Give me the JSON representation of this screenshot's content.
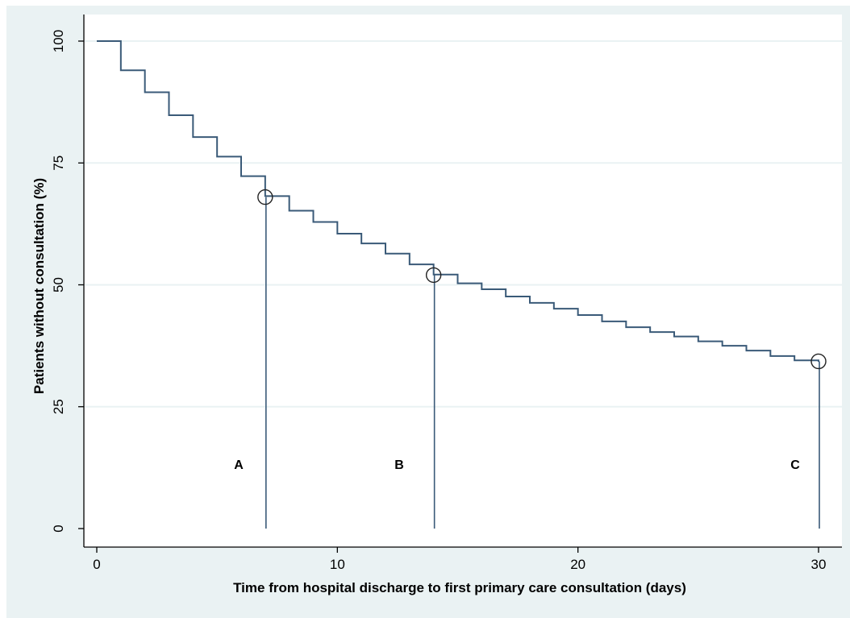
{
  "chart_data": {
    "type": "line",
    "subtype": "kaplan-meier-step",
    "title": "",
    "xlabel": "Time from hospital discharge to first primary care consultation (days)",
    "ylabel": "Patients without consultation (%)",
    "xlim": [
      0,
      30
    ],
    "ylim": [
      0,
      100
    ],
    "xticks": [
      0,
      10,
      20,
      30
    ],
    "yticks": [
      0,
      25,
      50,
      75,
      100
    ],
    "grid": "horizontal",
    "colors": {
      "line": "#3a5a78",
      "background": "#eaf2f3",
      "plot": "#ffffff",
      "grid": "#eaf2f3"
    },
    "series": [
      {
        "x": [
          0,
          1,
          2,
          3,
          4,
          5,
          6,
          7,
          8,
          9,
          10,
          11,
          12,
          13,
          14,
          15,
          16,
          17,
          18,
          19,
          20,
          21,
          22,
          23,
          24,
          25,
          26,
          27,
          28,
          29,
          30
        ],
        "y": [
          100,
          94,
          89.5,
          84.8,
          80.3,
          76.3,
          72.3,
          68.2,
          65.2,
          62.9,
          60.5,
          58.5,
          56.4,
          54.2,
          52.1,
          50.3,
          49.1,
          47.6,
          46.3,
          45.1,
          43.8,
          42.5,
          41.3,
          40.3,
          39.4,
          38.4,
          37.5,
          36.5,
          35.4,
          34.5,
          34.2
        ]
      }
    ],
    "annotations": [
      {
        "label": "A",
        "x": 7,
        "y": 68
      },
      {
        "label": "B",
        "x": 14,
        "y": 52
      },
      {
        "label": "C",
        "x": 30,
        "y": 34.3
      }
    ]
  }
}
